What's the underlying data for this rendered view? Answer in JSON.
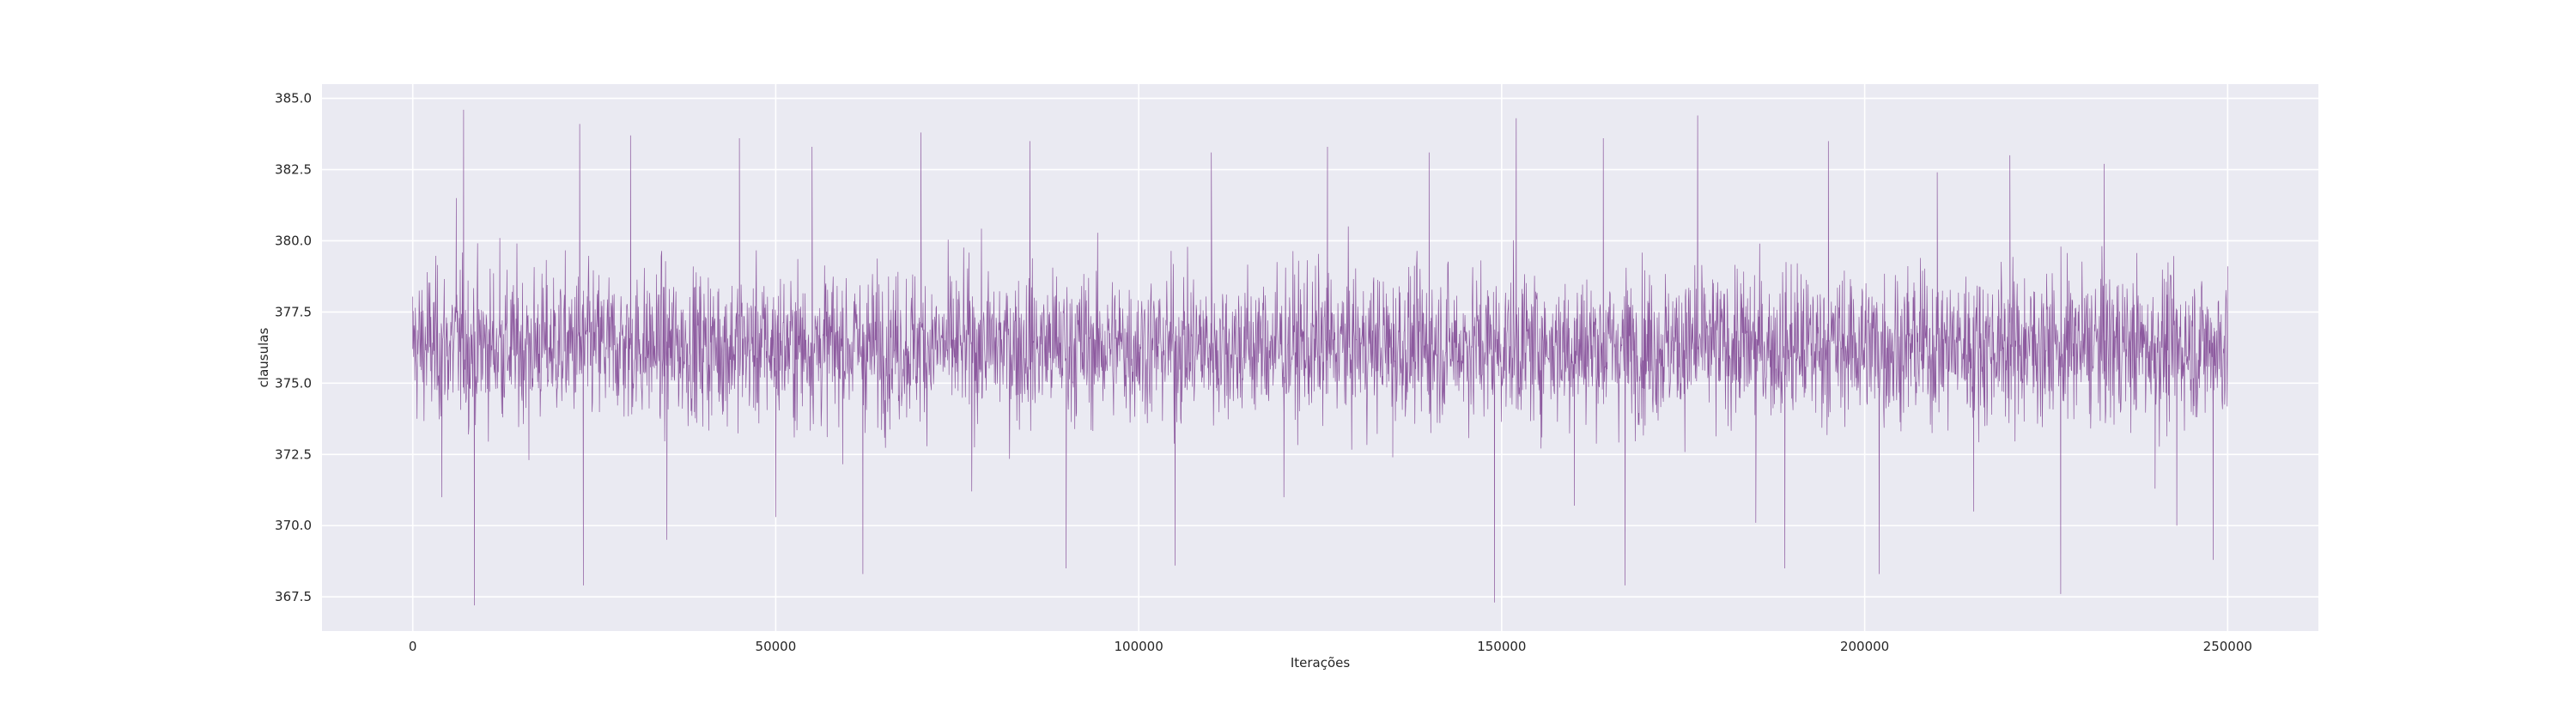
{
  "chart_data": {
    "type": "line",
    "title": "",
    "xlabel": "Iterações",
    "ylabel": "clausulas",
    "xlim": [
      -12500,
      262500
    ],
    "ylim": [
      366.3,
      385.5
    ],
    "x_ticks": [
      0,
      50000,
      100000,
      150000,
      200000,
      250000
    ],
    "x_tick_labels": [
      "0",
      "50000",
      "100000",
      "150000",
      "200000",
      "250000"
    ],
    "y_ticks": [
      367.5,
      370.0,
      372.5,
      375.0,
      377.5,
      380.0,
      382.5,
      385.0
    ],
    "y_tick_labels": [
      "367.5",
      "370.0",
      "372.5",
      "375.0",
      "377.5",
      "380.0",
      "382.5",
      "385.0"
    ],
    "grid": true,
    "background": "#eaeaf2",
    "line_color": "#7b3f8f",
    "series": [
      {
        "x_range": [
          0,
          250000
        ],
        "mean": 376.3,
        "typical_range": [
          373.0,
          379.5
        ],
        "min": 367.2,
        "max": 384.6,
        "values": [
          [
            0,
            376.2
          ],
          [
            2000,
            378.9
          ],
          [
            4000,
            371.0
          ],
          [
            6000,
            381.5
          ],
          [
            7000,
            384.6
          ],
          [
            8500,
            367.2
          ],
          [
            12000,
            380.1
          ],
          [
            16000,
            372.3
          ],
          [
            20000,
            376.5
          ],
          [
            23000,
            384.1
          ],
          [
            23500,
            367.9
          ],
          [
            30000,
            383.7
          ],
          [
            35000,
            369.5
          ],
          [
            40000,
            377.2
          ],
          [
            45000,
            383.6
          ],
          [
            50000,
            370.3
          ],
          [
            55000,
            383.3
          ],
          [
            62000,
            368.3
          ],
          [
            70000,
            383.8
          ],
          [
            77000,
            371.2
          ],
          [
            85000,
            383.5
          ],
          [
            90000,
            368.5
          ],
          [
            100000,
            376.1
          ],
          [
            105000,
            368.6
          ],
          [
            110000,
            383.1
          ],
          [
            120000,
            371.0
          ],
          [
            126000,
            383.3
          ],
          [
            135000,
            372.4
          ],
          [
            140000,
            383.1
          ],
          [
            149000,
            367.3
          ],
          [
            152000,
            384.3
          ],
          [
            160000,
            370.7
          ],
          [
            164000,
            383.6
          ],
          [
            167000,
            367.9
          ],
          [
            175000,
            375.8
          ],
          [
            177000,
            384.4
          ],
          [
            185000,
            370.1
          ],
          [
            189000,
            368.5
          ],
          [
            195000,
            383.5
          ],
          [
            200000,
            376.3
          ],
          [
            202000,
            368.3
          ],
          [
            210000,
            382.4
          ],
          [
            215000,
            370.5
          ],
          [
            220000,
            383.0
          ],
          [
            227000,
            367.6
          ],
          [
            233000,
            382.7
          ],
          [
            240000,
            371.3
          ],
          [
            243000,
            370.0
          ],
          [
            248000,
            368.8
          ],
          [
            250000,
            379.1
          ]
        ]
      }
    ]
  }
}
